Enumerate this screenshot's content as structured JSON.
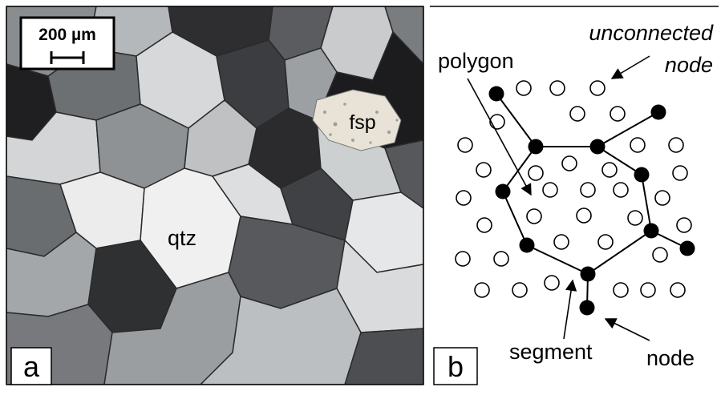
{
  "panel_a": {
    "scale_bar_label": "200 µm",
    "mineral_labels": {
      "qtz": "qtz",
      "fsp": "fsp"
    },
    "panel_letter": "a"
  },
  "panel_b": {
    "panel_letter": "b",
    "labels": {
      "unconnected_line1": "unconnected",
      "unconnected_line2": "node",
      "polygon": "polygon",
      "segment": "segment",
      "node": "node"
    }
  }
}
